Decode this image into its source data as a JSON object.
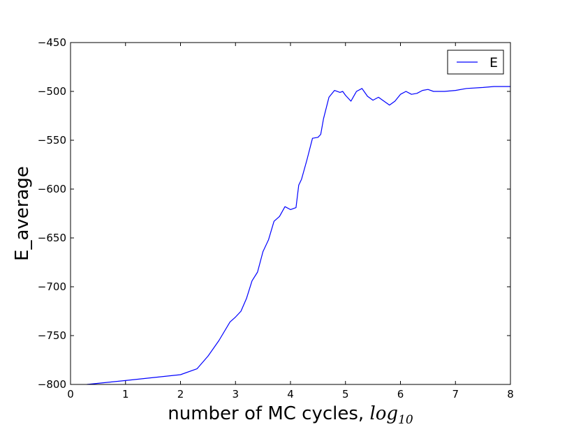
{
  "chart_data": {
    "type": "line",
    "title": "",
    "xlabel": "number of MC cycles, ",
    "xlabel_math": "log",
    "xlabel_math_sub": "10",
    "ylabel": "E_average",
    "xlim": [
      0,
      8
    ],
    "ylim": [
      -800,
      -450
    ],
    "xticks": [
      0,
      1,
      2,
      3,
      4,
      5,
      6,
      7,
      8
    ],
    "xtick_labels": [
      "0",
      "1",
      "2",
      "3",
      "4",
      "5",
      "6",
      "7",
      "8"
    ],
    "yticks": [
      -800,
      -750,
      -700,
      -650,
      -600,
      -550,
      -500,
      -450
    ],
    "ytick_labels": [
      "−800",
      "−750",
      "−700",
      "−650",
      "−600",
      "−550",
      "−500",
      "−450"
    ],
    "grid": false,
    "legend_position": "top-right",
    "line_color": "#0000ff",
    "series": [
      {
        "name": "E",
        "color": "#0000ff",
        "x": [
          0.3,
          1.0,
          2.0,
          2.3,
          2.5,
          2.7,
          2.9,
          3.0,
          3.1,
          3.2,
          3.3,
          3.4,
          3.5,
          3.6,
          3.7,
          3.8,
          3.9,
          4.0,
          4.1,
          4.15,
          4.2,
          4.3,
          4.4,
          4.5,
          4.55,
          4.6,
          4.7,
          4.8,
          4.9,
          4.95,
          5.0,
          5.1,
          5.2,
          5.3,
          5.4,
          5.5,
          5.6,
          5.7,
          5.8,
          5.9,
          6.0,
          6.1,
          6.2,
          6.3,
          6.4,
          6.5,
          6.6,
          6.8,
          7.0,
          7.2,
          7.5,
          7.7,
          8.0
        ],
        "y": [
          -800,
          -796,
          -790,
          -784,
          -771,
          -755,
          -736,
          -731,
          -725,
          -712,
          -694,
          -685,
          -664,
          -652,
          -633,
          -628,
          -618,
          -621,
          -619,
          -596,
          -590,
          -570,
          -548,
          -547,
          -544,
          -528,
          -506,
          -499,
          -501,
          -500,
          -504,
          -510,
          -500,
          -497,
          -505,
          -509,
          -506,
          -510,
          -514,
          -510,
          -503,
          -500,
          -503,
          -502,
          -499,
          -498,
          -500,
          -500,
          -499,
          -497,
          -496,
          -495,
          -495
        ]
      }
    ]
  }
}
